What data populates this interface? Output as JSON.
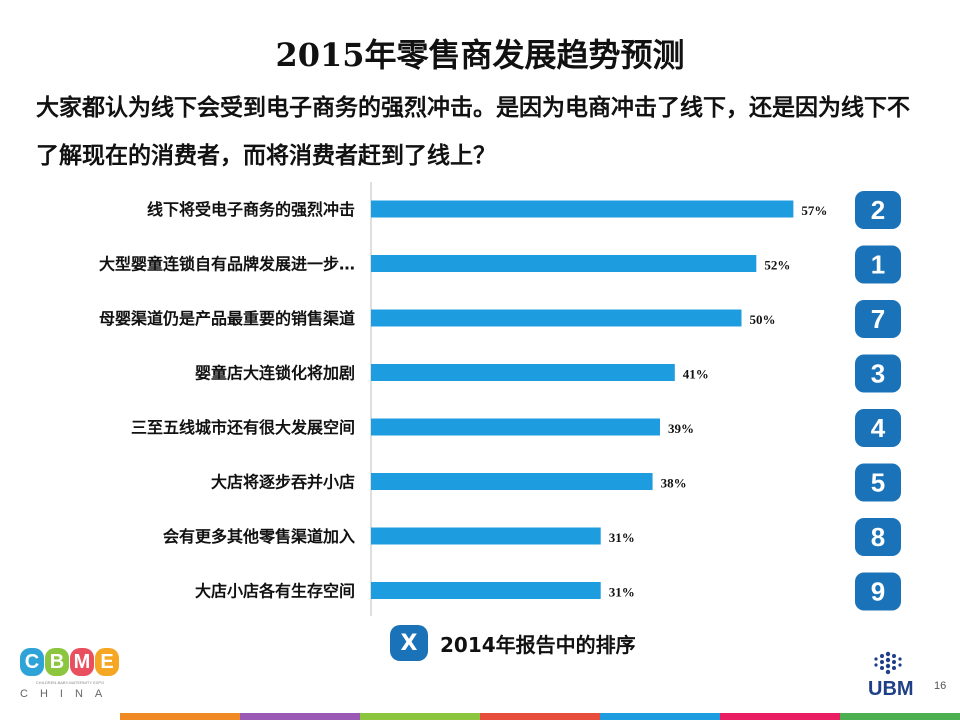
{
  "title": "2015年零售商发展趋势预测",
  "subtitle": "大家都认为线下会受到电子商务的强烈冲击。是因为电商冲击了线下，还是因为线下不了解现在的消费者，而将消费者赶到了线上？",
  "chart_data": {
    "type": "bar",
    "orientation": "horizontal",
    "categories": [
      "线下将受电子商务的强烈冲击",
      "大型婴童连锁自有品牌发展进一步…",
      "母婴渠道仍是产品最重要的销售渠道",
      "婴童店大连锁化将加剧",
      "三至五线城市还有很大发展空间",
      "大店将逐步吞并小店",
      "会有更多其他零售渠道加入",
      "大店小店各有生存空间"
    ],
    "values": [
      57,
      52,
      50,
      41,
      39,
      38,
      31,
      31
    ],
    "value_labels": [
      "57%",
      "52%",
      "50%",
      "41%",
      "39%",
      "38%",
      "31%",
      "31%"
    ],
    "rank_2014": [
      "2",
      "1",
      "7",
      "3",
      "4",
      "5",
      "8",
      "9"
    ],
    "xlim": [
      0,
      100
    ],
    "bar_color": "#1e9ce0",
    "badge_color": "#1a73b8"
  },
  "legend": {
    "badge": "X",
    "text": "2014年报告中的排序"
  },
  "logo_cbme": {
    "letters": [
      "C",
      "B",
      "M",
      "E"
    ],
    "letter_colors": [
      "#2ea3d8",
      "#8cc63f",
      "#e9505f",
      "#f5a623"
    ],
    "tagline": "CHILDREN-BABY-MATERNITY EXPO",
    "sub": "CHINA"
  },
  "logo_ubm": {
    "text": "UBM",
    "color": "#1f3f87"
  },
  "page_number": "16",
  "footer_colors": [
    "#f08a24",
    "#9b59b6",
    "#8cc63f",
    "#e74c3c",
    "#1e9ce0",
    "#e91e63",
    "#4caf50"
  ]
}
